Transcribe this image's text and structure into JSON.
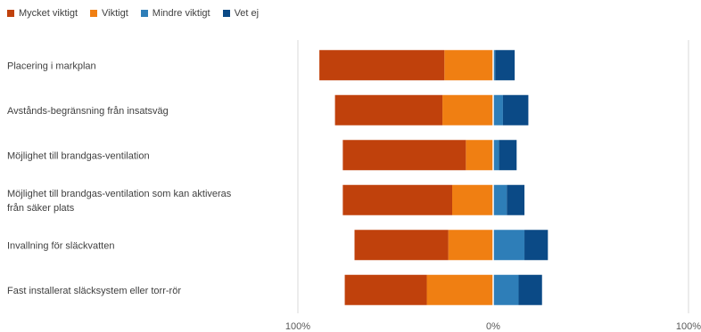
{
  "chart_data": {
    "type": "bar",
    "orientation": "horizontal",
    "stacking": "diverging",
    "categories": [
      [
        "Placering i markplan"
      ],
      [
        "Avstånds-begränsning från insatsväg"
      ],
      [
        "Möjlighet till brandgas-ventilation"
      ],
      [
        "Möjlighet till brandgas-ventilation som kan aktiveras",
        "från säker plats"
      ],
      [
        "Invallning för släckvatten"
      ],
      [
        "Fast installerat släcksystem eller torr-rör"
      ]
    ],
    "series": [
      {
        "name": "Mycket viktigt",
        "side": "negative",
        "color": "#C0410C",
        "values": [
          64,
          55,
          63,
          56,
          48,
          42
        ]
      },
      {
        "name": "Viktigt",
        "side": "negative",
        "color": "#F07F12",
        "values": [
          25,
          26,
          14,
          21,
          23,
          34
        ]
      },
      {
        "name": "Mindre viktigt",
        "side": "positive",
        "color": "#2E7EB8",
        "values": [
          1,
          5,
          3,
          7,
          16,
          13
        ]
      },
      {
        "name": "Vet ej",
        "side": "positive",
        "color": "#0B4A86",
        "values": [
          10,
          13,
          9,
          9,
          12,
          12
        ]
      }
    ],
    "xlim": [
      -100,
      100
    ],
    "ticks": [
      {
        "value": -100,
        "label": "100%"
      },
      {
        "value": 0,
        "label": "0%"
      },
      {
        "value": 100,
        "label": "100%"
      }
    ],
    "legend": "top-left",
    "grid": "vertical lines at 0% and 100%"
  }
}
